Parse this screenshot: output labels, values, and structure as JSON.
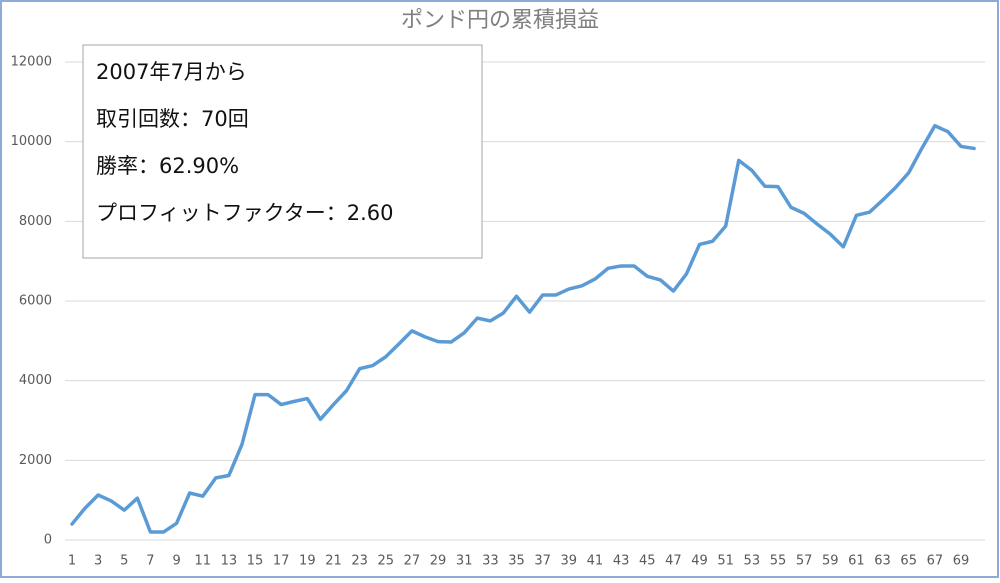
{
  "chart_data": {
    "type": "line",
    "title": "ポンド円の累積損益",
    "annotations": [
      "2007年7月から",
      "取引回数：70回",
      "勝率：62.90%",
      "プロフィットファクター：2.60"
    ],
    "categories": [
      1,
      null,
      3,
      null,
      5,
      null,
      7,
      null,
      9,
      null,
      11,
      null,
      13,
      null,
      15,
      null,
      17,
      null,
      19,
      null,
      21,
      null,
      23,
      null,
      25,
      null,
      27,
      null,
      29,
      null,
      31,
      null,
      33,
      null,
      35,
      null,
      37,
      null,
      39,
      null,
      41,
      null,
      43,
      null,
      45,
      null,
      47,
      null,
      49,
      null,
      51,
      null,
      53,
      null,
      55,
      null,
      57,
      null,
      59,
      null,
      61,
      null,
      63,
      null,
      65,
      null,
      67,
      null,
      69,
      null
    ],
    "values": [
      400,
      800,
      1130,
      980,
      750,
      1050,
      200,
      200,
      420,
      1180,
      1100,
      1560,
      1620,
      2400,
      3650,
      3650,
      3400,
      3480,
      3550,
      3030,
      3400,
      3750,
      4300,
      4380,
      4600,
      4920,
      5250,
      5100,
      4980,
      4970,
      5200,
      5570,
      5500,
      5700,
      6120,
      5720,
      6150,
      6150,
      6300,
      6380,
      6550,
      6820,
      6880,
      6880,
      6620,
      6530,
      6250,
      6680,
      7420,
      7500,
      7880,
      9530,
      9280,
      8880,
      8870,
      8350,
      8200,
      7930,
      7680,
      7360,
      8150,
      8230,
      8530,
      8850,
      9220,
      9830,
      10400,
      10250,
      9880,
      9830
    ],
    "color": "#5b9bd5",
    "ylim": [
      0,
      12000
    ],
    "yticks": [
      0,
      2000,
      4000,
      6000,
      8000,
      10000,
      12000
    ],
    "grid": true
  }
}
